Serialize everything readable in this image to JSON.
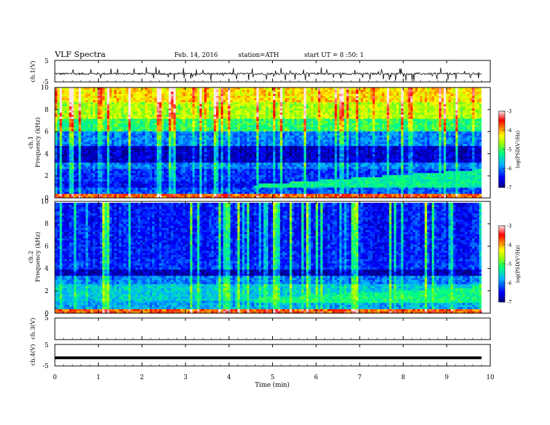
{
  "header": {
    "title": "VLF Spectra",
    "date": "Feb. 14, 2016",
    "station": "station=ATH",
    "start": "start UT =  8 :50: 1"
  },
  "chart_data": [
    {
      "type": "line",
      "panel": "ch1-waveform",
      "ylabel": "ch.1(V)",
      "ylim": [
        -5,
        5
      ],
      "yticks": [
        "5",
        "-5"
      ],
      "x_end_min": 9.8,
      "baseline_v": -1.2,
      "series": [
        {
          "values_summary": "noisy waveform around -1.2 V with frequent spikes to about +1 V and -3.5 V"
        }
      ]
    },
    {
      "type": "heatmap",
      "panel": "ch1-spectrogram",
      "ylabel": "ch.1\nFrequency (kHz)",
      "ylabel_lines": [
        "ch.1",
        "Frequency (kHz)"
      ],
      "ylim": [
        0,
        10
      ],
      "yticks": [
        "0",
        "2",
        "4",
        "6",
        "8",
        "10"
      ],
      "x_end_min": 9.8,
      "colorbar": {
        "label": "log(PSD(V²/Hz)",
        "range": [
          -7,
          -3
        ],
        "ticks": [
          "-3",
          "-4",
          "-5",
          "-6",
          "-7"
        ],
        "colors": [
          "#000080",
          "#0000ff",
          "#00b0ff",
          "#00ff80",
          "#a0ff00",
          "#ffff00",
          "#ff8000",
          "#ff0000",
          "#ffffff"
        ]
      },
      "bands": [
        {
          "f_lo": 0,
          "f_hi": 0.4,
          "logpsd": -3.8
        },
        {
          "f_lo": 0.4,
          "f_hi": 1.0,
          "logpsd": -6.2
        },
        {
          "f_lo": 1.0,
          "f_hi": 1.6,
          "logpsd": -6.5
        },
        {
          "f_lo": 1.6,
          "f_hi": 2.6,
          "logpsd": -6.3
        },
        {
          "f_lo": 2.6,
          "f_hi": 3.2,
          "logpsd": -6.0
        },
        {
          "f_lo": 3.2,
          "f_hi": 4.8,
          "logpsd": -6.7
        },
        {
          "f_lo": 4.8,
          "f_hi": 6.0,
          "logpsd": -6.0
        },
        {
          "f_lo": 6.0,
          "f_hi": 7.2,
          "logpsd": -5.1
        },
        {
          "f_lo": 7.2,
          "f_hi": 8.6,
          "logpsd": -4.6
        },
        {
          "f_lo": 8.6,
          "f_hi": 10.0,
          "logpsd": -4.2
        }
      ],
      "features": [
        {
          "name": "rising emission",
          "t_start_min": 4.6,
          "t_end_min": 9.8,
          "f_start_khz": 1.2,
          "f_end_khz": 2.6,
          "logpsd": -5.3
        }
      ]
    },
    {
      "type": "heatmap",
      "panel": "ch2-spectrogram",
      "ylabel": "ch.2\nFrequency (kHz)",
      "ylabel_lines": [
        "ch.2",
        "Frequency (kHz)"
      ],
      "ylim": [
        0,
        10
      ],
      "yticks": [
        "0",
        "2",
        "4",
        "6",
        "8",
        "10"
      ],
      "x_end_min": 9.8,
      "colorbar": {
        "label": "log(PSD(V²/Hz)",
        "range": [
          -7,
          -3
        ],
        "ticks": [
          "-3",
          "-4",
          "-5",
          "-6",
          "-7"
        ]
      },
      "bands": [
        {
          "f_lo": 0,
          "f_hi": 0.4,
          "logpsd": -3.8
        },
        {
          "f_lo": 0.4,
          "f_hi": 1.2,
          "logpsd": -5.8
        },
        {
          "f_lo": 1.2,
          "f_hi": 2.6,
          "logpsd": -5.6
        },
        {
          "f_lo": 2.6,
          "f_hi": 3.4,
          "logpsd": -6.0
        },
        {
          "f_lo": 3.4,
          "f_hi": 4.0,
          "logpsd": -6.8
        },
        {
          "f_lo": 4.0,
          "f_hi": 5.0,
          "logpsd": -6.3
        },
        {
          "f_lo": 5.0,
          "f_hi": 10.0,
          "logpsd": -6.4
        }
      ],
      "features": [
        {
          "name": "rising emission",
          "t_start_min": 4.6,
          "t_end_min": 9.8,
          "f_start_khz": 1.4,
          "f_end_khz": 2.4,
          "logpsd": -5.2
        }
      ]
    },
    {
      "type": "line",
      "panel": "ch3-waveform",
      "ylabel": "ch.3(V)",
      "ylim": [
        -5,
        5
      ],
      "yticks": [
        "5"
      ],
      "x_end_min": 9.8,
      "series": [
        {
          "values_summary": "no signal"
        }
      ]
    },
    {
      "type": "line",
      "panel": "ch4-waveform",
      "ylabel": "ch.4(V)",
      "ylim": [
        -5,
        5
      ],
      "yticks": [
        "5",
        "-5"
      ],
      "x_end_min": 9.8,
      "baseline_v": -1.2,
      "series": [
        {
          "values_summary": "flat thick trace near -1.2 V"
        }
      ]
    }
  ],
  "xaxis": {
    "label": "Time (min)",
    "range": [
      0,
      10
    ],
    "ticks": [
      "0",
      "1",
      "2",
      "3",
      "4",
      "5",
      "6",
      "7",
      "8",
      "9",
      "10"
    ]
  }
}
